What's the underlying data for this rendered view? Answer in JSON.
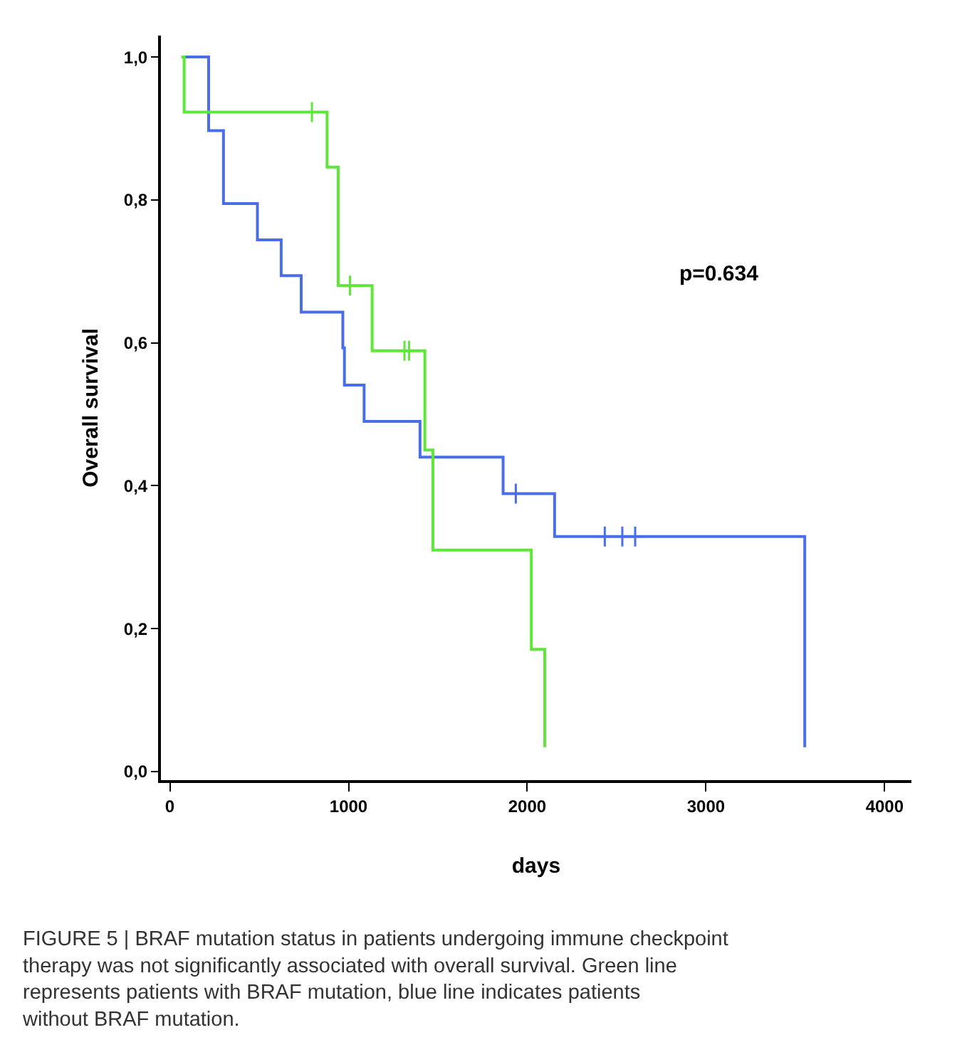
{
  "chart_data": {
    "type": "step",
    "xlabel": "days",
    "ylabel": "Overall survival",
    "xlim": [
      -50,
      4150
    ],
    "xticks": [
      0,
      1000,
      2000,
      3000,
      4000
    ],
    "ylim": [
      -0.012,
      1.03
    ],
    "yticks": [
      {
        "value": 0,
        "label": "0,0"
      },
      {
        "value": 0.2,
        "label": "0,2"
      },
      {
        "value": 0.4,
        "label": "0,4"
      },
      {
        "value": 0.6,
        "label": "0,6"
      },
      {
        "value": 0.8,
        "label": "0,8"
      },
      {
        "value": 1.0,
        "label": "1,0"
      }
    ],
    "line_style": "solid",
    "series": [
      {
        "color": "#4a6ee8",
        "x": [
          65,
          217,
          217,
          300,
          300,
          490,
          623,
          735,
          968,
          977,
          1087,
          1400,
          1865,
          2153,
          3553,
          3553
        ],
        "values": [
          1.0,
          0.947,
          0.897,
          0.846,
          0.795,
          0.744,
          0.694,
          0.643,
          0.593,
          0.541,
          0.49,
          0.44,
          0.389,
          0.329,
          0.329,
          0.034
        ]
      },
      {
        "color": "#5ee63a",
        "x": [
          65,
          80,
          880,
          942,
          1132,
          1427,
          1472,
          2023,
          2098
        ],
        "values": [
          1.0,
          0.923,
          0.846,
          0.68,
          0.589,
          0.45,
          0.31,
          0.171,
          0.034
        ]
      },
      {
        "type": "scatter",
        "marker": "cross",
        "color": "#4a6ee8",
        "x": [
          1936,
          2434,
          2532,
          2604
        ],
        "values": [
          0.389,
          0.329,
          0.329,
          0.329
        ]
      },
      {
        "type": "scatter",
        "marker": "cross",
        "color": "#5ee63a",
        "x": [
          795,
          1008,
          1313,
          1339
        ],
        "values": [
          0.923,
          0.68,
          0.589,
          0.589
        ]
      }
    ],
    "annotations": [
      "p=0.634",
      "FIGURE 5 | BRAF mutation status in patients undergoing immune checkpoint therapy was not significantly associated with overall survival. Green line represents patients with BRAF mutation, blue line indicates patients without BRAF mutation."
    ]
  }
}
